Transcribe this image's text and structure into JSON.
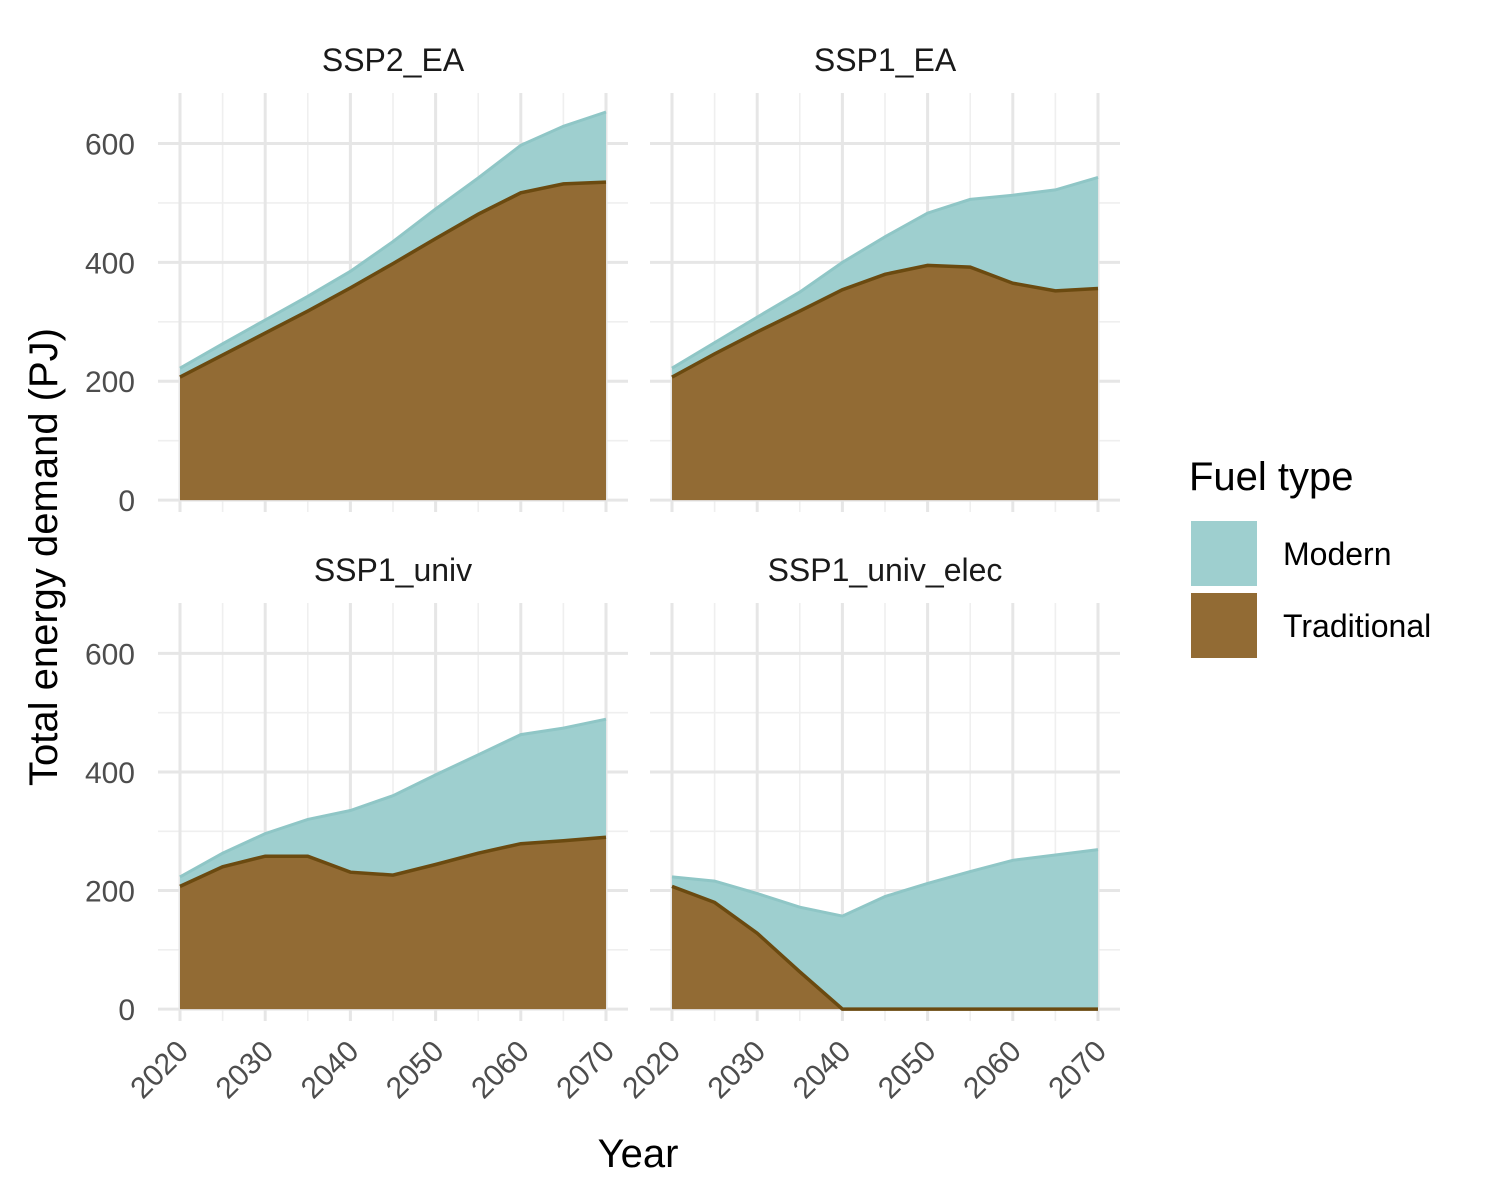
{
  "chart_data": {
    "type": "area",
    "stacked": true,
    "facets": [
      "SSP2_EA",
      "SSP1_EA",
      "SSP1_univ",
      "SSP1_univ_elec"
    ],
    "x": [
      2020,
      2025,
      2030,
      2035,
      2040,
      2045,
      2050,
      2055,
      2060,
      2065,
      2070
    ],
    "x_ticks": [
      2020,
      2030,
      2040,
      2050,
      2060,
      2070
    ],
    "y_ticks": [
      0,
      200,
      400,
      600
    ],
    "xlim": [
      2020,
      2070
    ],
    "ylim": [
      -20,
      685
    ],
    "xlabel": "Year",
    "ylabel": "Total energy demand (PJ)",
    "grid": true,
    "legend": {
      "title": "Fuel type",
      "position": "right",
      "entries": [
        {
          "label": "Modern",
          "color": "#9ecfcf"
        },
        {
          "label": "Traditional",
          "color": "#926b34"
        }
      ]
    },
    "colors": {
      "modern_fill": "#9ecfcf",
      "modern_line": "#8fc6c6",
      "traditional_fill": "#926b34",
      "traditional_line": "#6b4a10"
    },
    "panels": [
      {
        "facet": "SSP2_EA",
        "series": [
          {
            "name": "Traditional",
            "values": [
              207,
              244,
              281,
              318,
              357,
              398,
              440,
              481,
              517,
              532,
              535
            ]
          },
          {
            "name": "Modern",
            "values": [
              15,
              19,
              22,
              25,
              28,
              37,
              50,
              61,
              80,
              97,
              118
            ]
          }
        ]
      },
      {
        "facet": "SSP1_EA",
        "series": [
          {
            "name": "Traditional",
            "values": [
              207,
              246,
              283,
              318,
              354,
              380,
              395,
              392,
              365,
              352,
              356
            ]
          },
          {
            "name": "Modern",
            "values": [
              15,
              19,
              25,
              32,
              46,
              63,
              88,
              114,
              148,
              170,
              187
            ]
          }
        ]
      },
      {
        "facet": "SSP1_univ",
        "series": [
          {
            "name": "Traditional",
            "values": [
              207,
              240,
              258,
              258,
              231,
              226,
              244,
              263,
              279,
              284,
              290
            ]
          },
          {
            "name": "Modern",
            "values": [
              16,
              23,
              38,
              62,
              104,
              134,
              151,
              166,
              184,
              190,
              199
            ]
          }
        ]
      },
      {
        "facet": "SSP1_univ_elec",
        "series": [
          {
            "name": "Traditional",
            "values": [
              207,
              180,
              128,
              63,
              0,
              0,
              0,
              0,
              0,
              0,
              0
            ]
          },
          {
            "name": "Modern",
            "values": [
              16,
              36,
              67,
              109,
              157,
              190,
              212,
              232,
              251,
              260,
              269
            ]
          }
        ]
      }
    ]
  }
}
